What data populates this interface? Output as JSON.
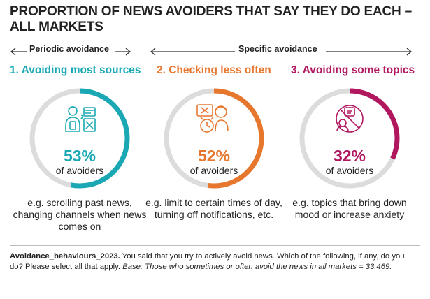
{
  "title": "PROPORTION OF NEWS AVOIDERS THAT SAY THEY DO EACH – ALL MARKETS",
  "groups": {
    "periodic": "Periodic avoidance",
    "specific": "Specific avoidance"
  },
  "colors": {
    "teal": "#1aa9b4",
    "orange": "#e8772e",
    "magenta": "#b0175f",
    "track": "#dcdcdc"
  },
  "chart_data": {
    "type": "pie",
    "title": "PROPORTION OF NEWS AVOIDERS THAT SAY THEY DO EACH – ALL MARKETS",
    "unit": "%",
    "categories": [
      "1. Avoiding most sources",
      "2. Checking less often",
      "3. Avoiding some topics"
    ],
    "values": [
      53,
      52,
      32
    ],
    "items": [
      {
        "label": "1. Avoiding most sources",
        "value": 53,
        "value_label": "53%",
        "sublabel": "of avoiders",
        "example": "e.g. scrolling past news, changing channels when news comes on",
        "icon": "scrolling-person-icon",
        "color": "#1aa9b4"
      },
      {
        "label": "2. Checking less often",
        "value": 52,
        "value_label": "52%",
        "sublabel": "of avoiders",
        "example": "e.g. limit to certain times of day, turning off notifications, etc.",
        "icon": "clock-person-icon",
        "color": "#e8772e"
      },
      {
        "label": "3. Avoiding some topics",
        "value": 32,
        "value_label": "32%",
        "sublabel": "of avoiders",
        "example": "e.g. topics that bring down mood or increase anxiety",
        "icon": "prohibited-topic-icon",
        "color": "#b0175f"
      }
    ]
  },
  "footnote": {
    "bold": "Avoidance_behaviours_2023.",
    "text": " You said that you try to actively avoid news. Which of the following, if any, do you do? Please select all that apply. ",
    "italic": "Base: Those who sometimes or often avoid the news in all markets = 33,469."
  }
}
